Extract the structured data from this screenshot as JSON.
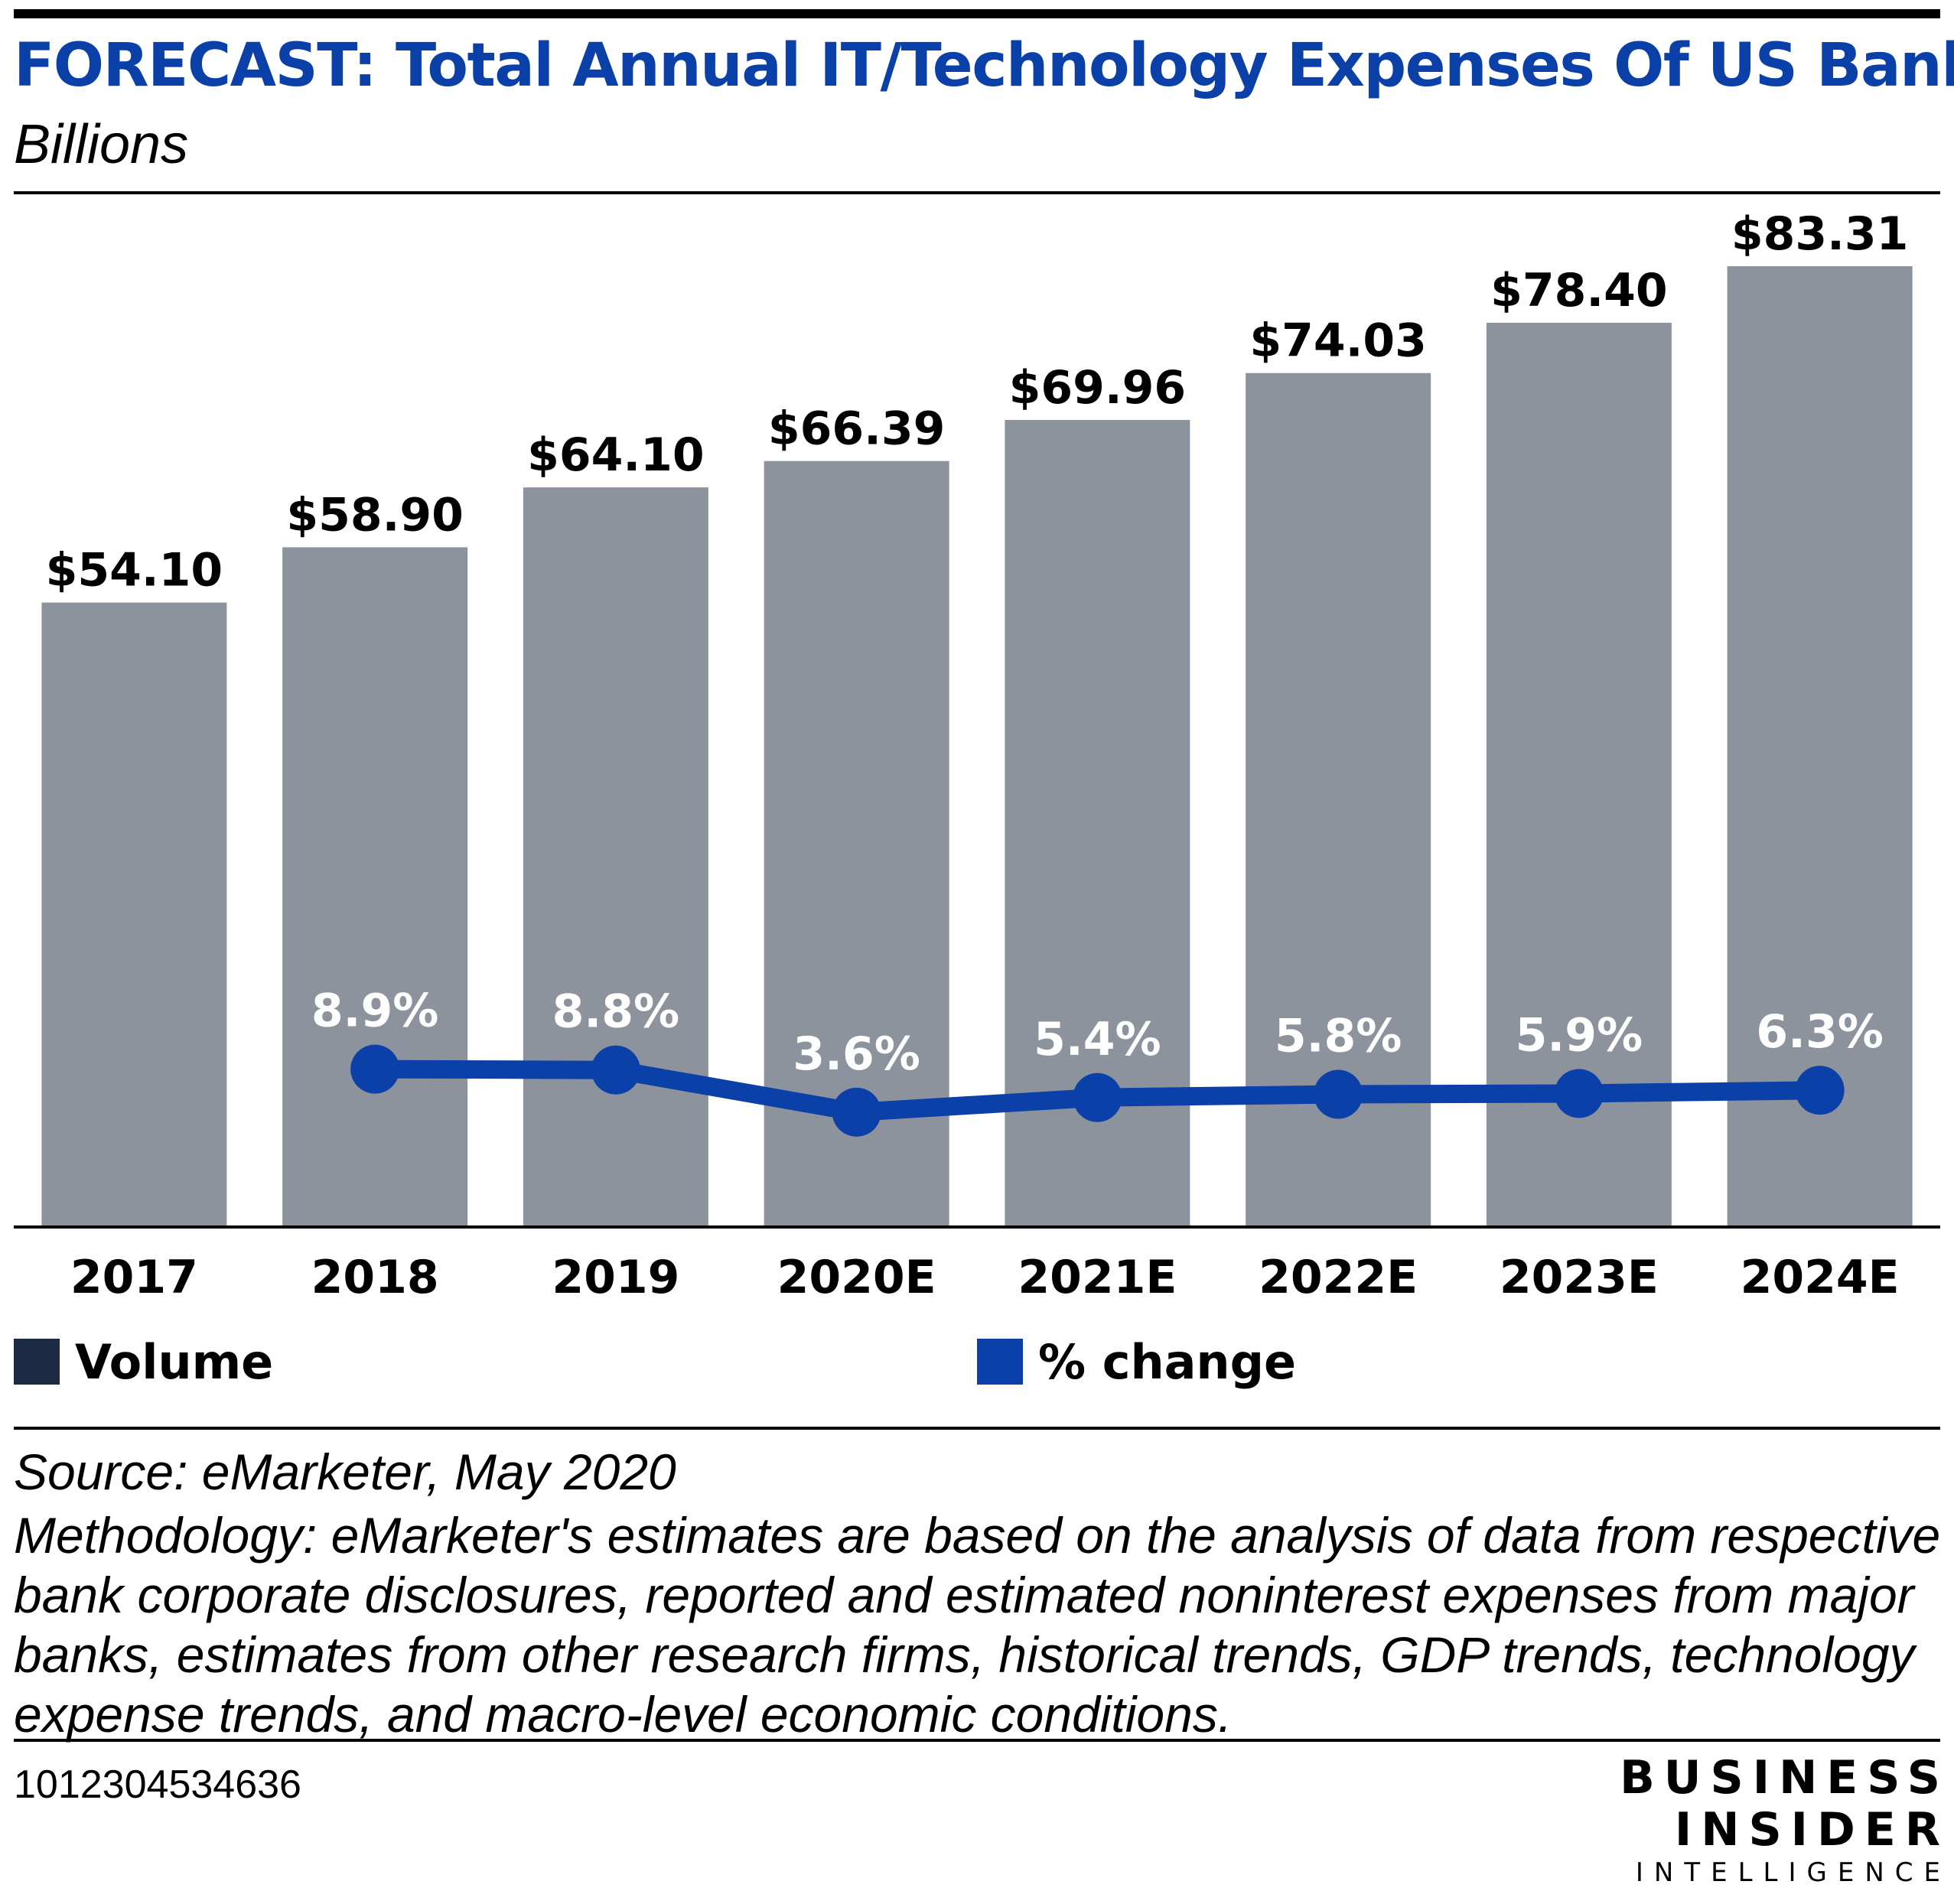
{
  "header": {
    "title": "FORECAST: Total Annual IT/Technology Expenses Of US Banks",
    "subtitle": "Billions"
  },
  "colors": {
    "bar": "#8d939c",
    "line": "#0a40a8",
    "volume_swatch": "#1c2a44",
    "title": "#0a40a8",
    "bar_label": "#000000",
    "pct_label": "#ffffff"
  },
  "chart_data": {
    "type": "bar",
    "categories": [
      "2017",
      "2018",
      "2019",
      "2020E",
      "2021E",
      "2022E",
      "2023E",
      "2024E"
    ],
    "series": [
      {
        "name": "Volume",
        "type": "bar",
        "values": [
          54.1,
          58.9,
          64.1,
          66.39,
          69.96,
          74.03,
          78.4,
          83.31
        ],
        "labels": [
          "$54.10",
          "$58.90",
          "$64.10",
          "$66.39",
          "$69.96",
          "$74.03",
          "$78.40",
          "$83.31"
        ]
      },
      {
        "name": "% change",
        "type": "line",
        "values": [
          null,
          8.9,
          8.8,
          3.6,
          5.4,
          5.8,
          5.9,
          6.3
        ],
        "labels": [
          "",
          "8.9%",
          "8.8%",
          "3.6%",
          "5.4%",
          "5.8%",
          "5.9%",
          "6.3%"
        ]
      }
    ],
    "ylim": [
      0,
      83.31
    ],
    "grid": false,
    "legend_position": "bottom"
  },
  "legend": {
    "volume_label": "Volume",
    "change_label": "% change"
  },
  "footer": {
    "source": "Source: eMarketer, May 2020",
    "methodology": "Methodology: eMarketer's estimates are based on the analysis of data from respective bank corporate disclosures, reported and estimated noninterest expenses from major banks, estimates from other research firms, historical trends, GDP trends, technology expense trends, and macro-level economic conditions.",
    "chart_id": "1012304534636"
  },
  "logo": {
    "line1": "BUSINESS",
    "line2": "INSIDER",
    "line3": "INTELLIGENCE"
  }
}
